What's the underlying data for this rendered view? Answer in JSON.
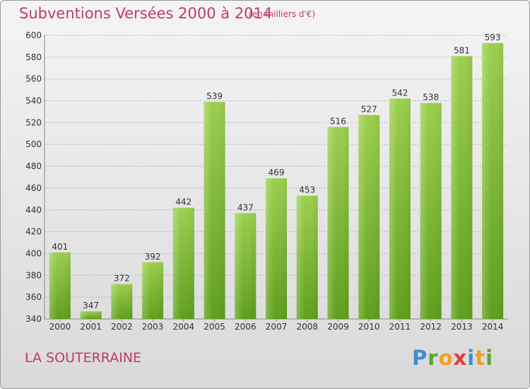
{
  "header": {
    "title": "Subventions Versées 2000 à 2014",
    "subtitle": "(en milliers d'€)"
  },
  "location": "LA SOUTERRAINE",
  "logo": {
    "text": "Proxiti"
  },
  "colors": {
    "title": "#c03a6b",
    "bar_top": "#9ccf4e",
    "bar_bottom": "#5f9f1c"
  },
  "chart_data": {
    "type": "bar",
    "categories": [
      "2000",
      "2001",
      "2002",
      "2003",
      "2004",
      "2005",
      "2006",
      "2007",
      "2008",
      "2009",
      "2010",
      "2011",
      "2012",
      "2013",
      "2014"
    ],
    "values": [
      401,
      347,
      372,
      392,
      442,
      539,
      437,
      469,
      453,
      516,
      527,
      542,
      538,
      581,
      593
    ],
    "title": "Subventions Versées 2000 à 2014",
    "subtitle": "(en milliers d'€)",
    "xlabel": "",
    "ylabel": "",
    "ylim": [
      340,
      600
    ],
    "yticks": [
      340,
      360,
      380,
      400,
      420,
      440,
      460,
      480,
      500,
      520,
      540,
      560,
      580,
      600
    ],
    "grid": true,
    "data_labels": true
  }
}
